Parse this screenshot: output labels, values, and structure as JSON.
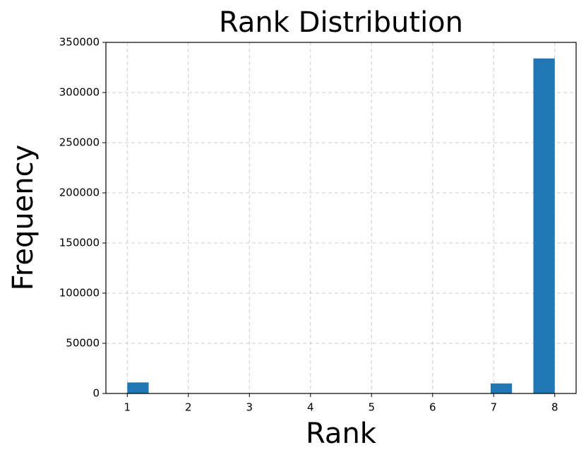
{
  "chart_data": {
    "type": "histogram",
    "title": "Rank Distribution",
    "x_label": "Rank",
    "y_label": "Frequency",
    "bins": [
      1,
      1.35,
      1.7,
      2.05,
      2.4,
      2.75,
      3.1,
      3.45,
      3.8,
      4.15,
      4.5,
      4.85,
      5.2,
      5.55,
      5.9,
      6.25,
      6.6,
      6.95,
      7.3,
      7.65,
      8
    ],
    "values": [
      11000,
      0,
      0,
      0,
      0,
      0,
      0,
      0,
      0,
      0,
      0,
      0,
      0,
      0,
      0,
      0,
      0,
      10000,
      0,
      334000
    ],
    "color": "#1f77b4",
    "xlim": [
      0.65,
      8.35
    ],
    "xticks": [
      1,
      2,
      3,
      4,
      5,
      6,
      7,
      8
    ],
    "ylim": [
      0,
      350000
    ],
    "yticks": [
      0,
      50000,
      100000,
      150000,
      200000,
      250000,
      300000,
      350000
    ],
    "grid": true
  }
}
